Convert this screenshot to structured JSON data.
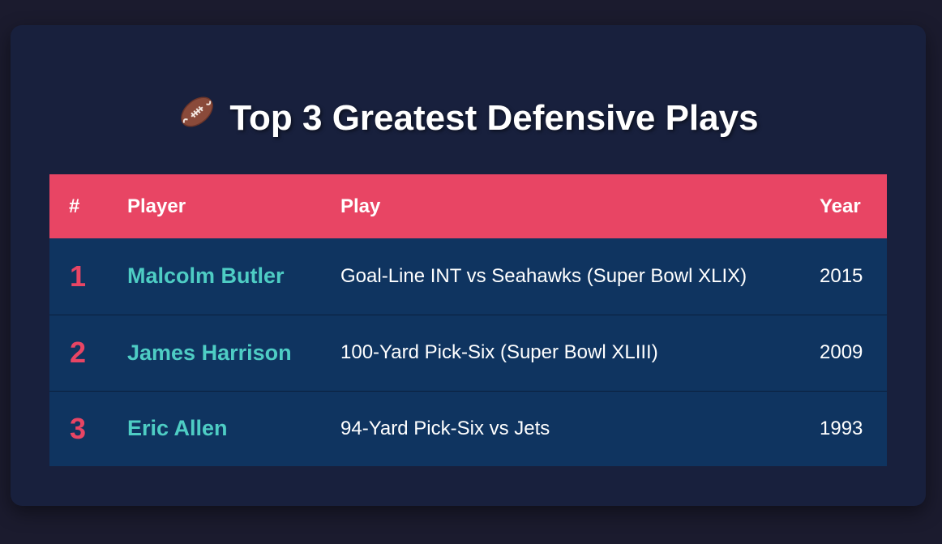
{
  "title": "Top 3 Greatest Defensive Plays",
  "title_icon": "football-icon",
  "table": {
    "headers": [
      "#",
      "Player",
      "Play",
      "Year"
    ],
    "rows": [
      {
        "rank": "1",
        "player": "Malcolm Butler",
        "play": "Goal-Line INT vs Seahawks (Super Bowl XLIX)",
        "year": "2015"
      },
      {
        "rank": "2",
        "player": "James Harrison",
        "play": "100-Yard Pick-Six (Super Bowl XLIII)",
        "year": "2009"
      },
      {
        "rank": "3",
        "player": "Eric Allen",
        "play": "94-Yard Pick-Six vs Jets",
        "year": "1993"
      }
    ]
  },
  "colors": {
    "accent": "#e84564",
    "player": "#4ecdc4",
    "row_bg": "#0f3460",
    "card_bg": "#18203d",
    "page_bg": "#1b1b2e"
  }
}
